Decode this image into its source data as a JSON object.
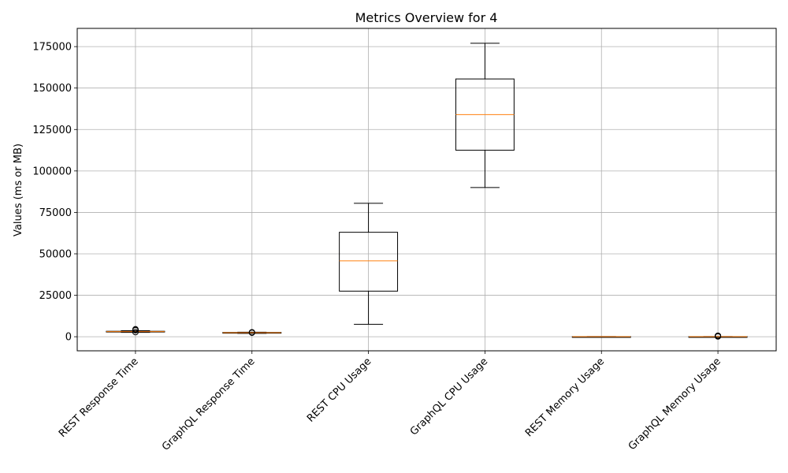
{
  "chart_data": {
    "type": "box",
    "title": "Metrics Overview for 4",
    "xlabel": "",
    "ylabel": "Values (ms or MB)",
    "ylim": [
      -8500,
      186000
    ],
    "yticks": [
      0,
      25000,
      50000,
      75000,
      100000,
      125000,
      150000,
      175000
    ],
    "ytick_labels": [
      "0",
      "25000",
      "50000",
      "75000",
      "100000",
      "125000",
      "150000",
      "175000"
    ],
    "grid": true,
    "categories": [
      "REST Response Time",
      "GraphQL Response Time",
      "REST CPU Usage",
      "GraphQL CPU Usage",
      "REST Memory Usage",
      "GraphQL Memory Usage"
    ],
    "boxes": [
      {
        "label": "REST Response Time",
        "whislo": 2600,
        "q1": 2900,
        "med": 3100,
        "q3": 3300,
        "whishi": 3600,
        "fliers": [
          3900,
          4200,
          4500,
          2800
        ]
      },
      {
        "label": "GraphQL Response Time",
        "whislo": 2000,
        "q1": 2300,
        "med": 2450,
        "q3": 2600,
        "whishi": 2750,
        "fliers": [
          2400,
          2700
        ]
      },
      {
        "label": "REST CPU Usage",
        "whislo": 7500,
        "q1": 27500,
        "med": 45800,
        "q3": 63000,
        "whishi": 80500,
        "fliers": []
      },
      {
        "label": "GraphQL CPU Usage",
        "whislo": 90000,
        "q1": 112500,
        "med": 134000,
        "q3": 155500,
        "whishi": 177000,
        "fliers": []
      },
      {
        "label": "REST Memory Usage",
        "whislo": 20,
        "q1": 40,
        "med": 60,
        "q3": 80,
        "whishi": 110,
        "fliers": []
      },
      {
        "label": "GraphQL Memory Usage",
        "whislo": 20,
        "q1": 40,
        "med": 60,
        "q3": 80,
        "whishi": 100,
        "fliers": [
          180,
          260,
          340,
          420,
          500,
          600
        ]
      }
    ],
    "colors": {
      "box": "#000000",
      "median": "#ff7f0e",
      "grid": "#b0b0b0"
    }
  }
}
